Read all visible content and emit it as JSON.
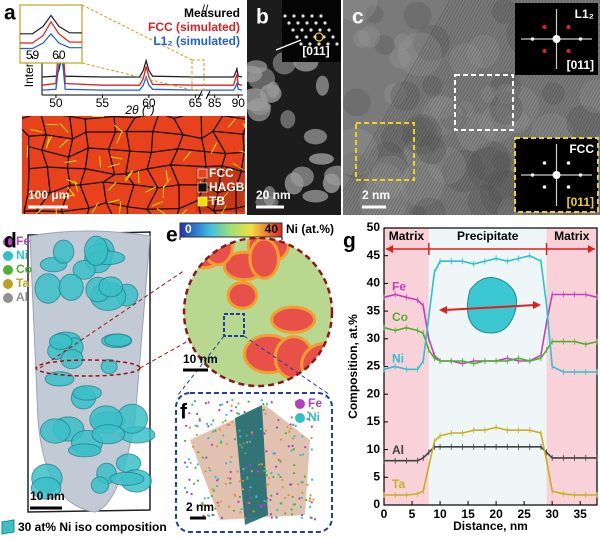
{
  "panels": {
    "a": {
      "label": "a",
      "legend": [
        {
          "name": "FCC",
          "color": "#e8421c"
        },
        {
          "name": "HAGB",
          "color": "#111111"
        },
        {
          "name": "TB",
          "color": "#f5e000"
        }
      ],
      "scale_bar": "100 μm"
    },
    "b": {
      "label": "b",
      "zone_axis": "[011]",
      "scale_bar": "20 nm"
    },
    "c": {
      "label": "c",
      "inset_top": {
        "phase": "L1₂",
        "zone_axis": "[011]"
      },
      "inset_bottom": {
        "phase": "FCC",
        "zone_axis": "[011]"
      },
      "scale_bar": "2 nm"
    },
    "d": {
      "label": "d",
      "legend": [
        {
          "name": "Fe",
          "color": "#b040c0"
        },
        {
          "name": "Ni",
          "color": "#30c0c8"
        },
        {
          "name": "Co",
          "color": "#50b030"
        },
        {
          "name": "Ta",
          "color": "#c0a020"
        },
        {
          "name": "Al",
          "color": "#909090"
        }
      ],
      "scale_bar": "10 nm",
      "caption": "30 at% Ni iso composition"
    },
    "e": {
      "label": "e",
      "colorbar": {
        "range": [
          0,
          40
        ],
        "ticks": [
          0,
          40
        ],
        "label": "Ni (at.%)"
      },
      "scale_bar": "10 nm"
    },
    "f": {
      "label": "f",
      "legend": [
        {
          "name": "Fe",
          "color": "#b040c0"
        },
        {
          "name": "Ni",
          "color": "#30c0c8"
        }
      ],
      "scale_bar": "2 nm"
    },
    "g": {
      "label": "g"
    }
  },
  "chart_data": [
    {
      "type": "line",
      "ylabel": "Intensity, a.u.",
      "xlabel": "2θ (°)",
      "x": [
        48.5,
        50,
        50.3,
        50.6,
        51,
        55,
        59,
        59.4,
        59.7,
        60,
        60.4,
        65,
        85,
        89,
        89.4,
        89.7,
        90,
        90.8
      ],
      "xlim": [
        48.5,
        91
      ],
      "xbreak": [
        65.5,
        84
      ],
      "xticks": [
        50,
        55,
        60,
        65,
        85,
        90
      ],
      "ylim": [
        0,
        1.1
      ],
      "series": [
        {
          "name": "Measured",
          "color": "#222222",
          "values": [
            0.22,
            0.23,
            0.3,
            0.45,
            0.23,
            0.22,
            0.22,
            0.3,
            0.42,
            0.3,
            0.23,
            0.22,
            0.22,
            0.22,
            0.27,
            0.32,
            0.23,
            0.22
          ]
        },
        {
          "name": "FCC (simulated)",
          "color": "#e02020",
          "values": [
            0.12,
            0.14,
            0.6,
            1.0,
            0.14,
            0.12,
            0.12,
            0.2,
            0.35,
            0.22,
            0.13,
            0.12,
            0.12,
            0.12,
            0.2,
            0.25,
            0.13,
            0.12
          ]
        },
        {
          "name": "L1₂ (simulated)",
          "color": "#2060d0",
          "values": [
            0.06,
            0.07,
            0.35,
            0.55,
            0.07,
            0.06,
            0.06,
            0.12,
            0.22,
            0.12,
            0.07,
            0.06,
            0.06,
            0.06,
            0.1,
            0.14,
            0.07,
            0.06
          ]
        }
      ],
      "inset": {
        "xlim": [
          58.6,
          60.8
        ],
        "xticks": [
          59,
          60
        ]
      }
    },
    {
      "type": "line",
      "xlabel": "Distance, nm",
      "ylabel": "Composition, at.%",
      "x": [
        0,
        2,
        4,
        6,
        7,
        8,
        9,
        10,
        12,
        14,
        16,
        18,
        20,
        22,
        24,
        26,
        28,
        29,
        30,
        32,
        34,
        36,
        38
      ],
      "xlim": [
        0,
        38
      ],
      "xticks": [
        0,
        5,
        10,
        15,
        20,
        25,
        30,
        35
      ],
      "ylim": [
        0,
        50
      ],
      "yticks": [
        0,
        5,
        10,
        15,
        20,
        25,
        30,
        35,
        40,
        45,
        50
      ],
      "regions": [
        {
          "label": "Matrix",
          "from": 0,
          "to": 8
        },
        {
          "label": "Precipitate",
          "from": 8,
          "to": 29
        },
        {
          "label": "Matrix",
          "from": 29,
          "to": 38
        }
      ],
      "series": [
        {
          "name": "Fe",
          "color": "#c040c0",
          "values": [
            37.5,
            38,
            37.5,
            37,
            36,
            30,
            27,
            26,
            26,
            25.5,
            26,
            26,
            26,
            26.5,
            26,
            26,
            27,
            33,
            38,
            38,
            38,
            38,
            37.5
          ]
        },
        {
          "name": "Co",
          "color": "#50b030",
          "values": [
            32,
            31.5,
            32,
            31.5,
            31,
            28,
            26.5,
            26,
            26,
            26,
            25.5,
            26,
            26,
            26,
            26.5,
            26,
            26.5,
            28,
            29.5,
            29.5,
            29.5,
            29,
            29.5
          ]
        },
        {
          "name": "Ni",
          "color": "#30c0d0",
          "values": [
            24.5,
            25,
            24.5,
            24.5,
            26,
            34,
            42,
            44,
            44,
            44,
            43.5,
            44,
            44.5,
            44,
            44.5,
            45,
            44,
            36,
            25,
            24,
            24,
            24,
            24
          ]
        },
        {
          "name": "Al",
          "color": "#404040",
          "values": [
            8,
            8,
            8,
            8,
            8.5,
            9.5,
            10.5,
            10.5,
            10.5,
            10.5,
            10.5,
            10.5,
            10.5,
            10.5,
            10.5,
            10.5,
            10.5,
            9.5,
            8.5,
            8.5,
            8.5,
            8.5,
            8.5
          ]
        },
        {
          "name": "Ta",
          "color": "#c8b020",
          "values": [
            1.8,
            1.8,
            1.8,
            2,
            2.5,
            7,
            11.5,
            12.5,
            13,
            13,
            13.5,
            13.5,
            14,
            13.5,
            13.5,
            13.5,
            13,
            8,
            2.5,
            2,
            1.8,
            1.8,
            1.8
          ]
        }
      ]
    }
  ]
}
